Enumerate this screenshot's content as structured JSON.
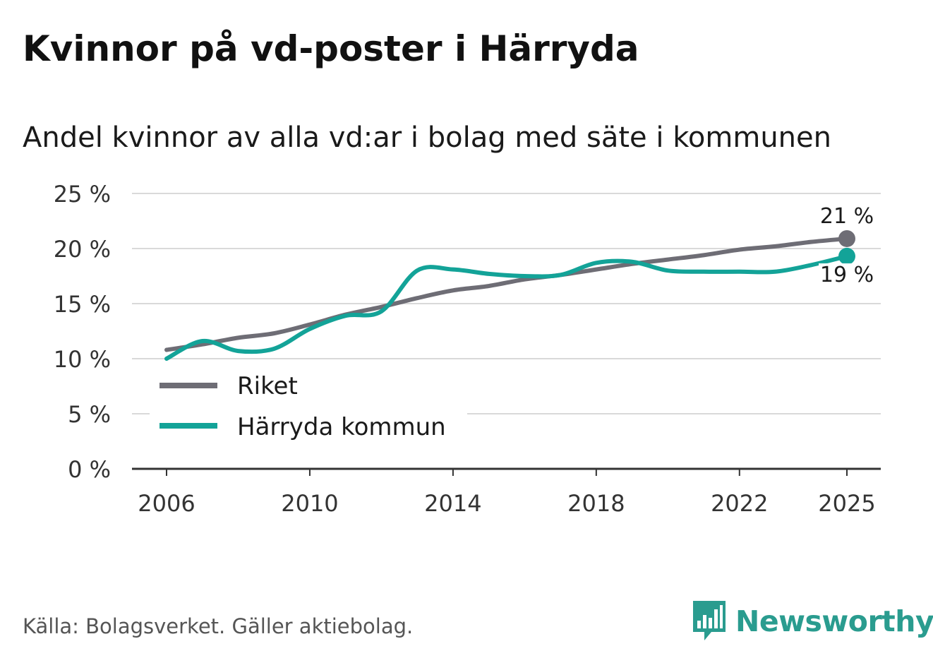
{
  "title": "Kvinnor på vd-poster i Härryda",
  "subtitle": "Andel kvinnor av alla vd:ar i bolag med säte i kommunen",
  "source": "Källa: Bolagsverket. Gäller aktiebolag.",
  "logo_text": "Newsworthy",
  "colors": {
    "riket": "#6e6d75",
    "harryda": "#13a398",
    "grid": "#d9d9d9",
    "axis": "#333333"
  },
  "chart_data": {
    "type": "line",
    "title": "Kvinnor på vd-poster i Härryda",
    "subtitle": "Andel kvinnor av alla vd:ar i bolag med säte i kommunen",
    "xlabel": "",
    "ylabel": "",
    "x": [
      2006,
      2007,
      2008,
      2009,
      2010,
      2011,
      2012,
      2013,
      2014,
      2015,
      2016,
      2017,
      2018,
      2019,
      2020,
      2021,
      2022,
      2023,
      2024,
      2025
    ],
    "xlim": [
      2006,
      2025
    ],
    "ylim": [
      0,
      25
    ],
    "x_ticks": [
      2006,
      2010,
      2014,
      2018,
      2022,
      2025
    ],
    "y_ticks": [
      0,
      5,
      10,
      15,
      20,
      25
    ],
    "y_tick_labels": [
      "0 %",
      "5 %",
      "10 %",
      "15 %",
      "20 %",
      "25 %"
    ],
    "grid": true,
    "legend_position": "bottom-left",
    "series": [
      {
        "name": "Riket",
        "color_key": "riket",
        "values": [
          10.8,
          11.3,
          11.9,
          12.3,
          13.1,
          14.0,
          14.7,
          15.5,
          16.2,
          16.6,
          17.2,
          17.6,
          18.1,
          18.6,
          19.0,
          19.4,
          19.9,
          20.2,
          20.6,
          20.9
        ],
        "end_label": "21 %"
      },
      {
        "name": "Härryda kommun",
        "color_key": "harryda",
        "values": [
          10.0,
          11.6,
          10.7,
          10.9,
          12.7,
          13.9,
          14.3,
          18.0,
          18.1,
          17.7,
          17.5,
          17.6,
          18.7,
          18.8,
          18.0,
          17.9,
          17.9,
          17.9,
          18.5,
          19.3
        ],
        "end_label": "19 %"
      }
    ]
  }
}
